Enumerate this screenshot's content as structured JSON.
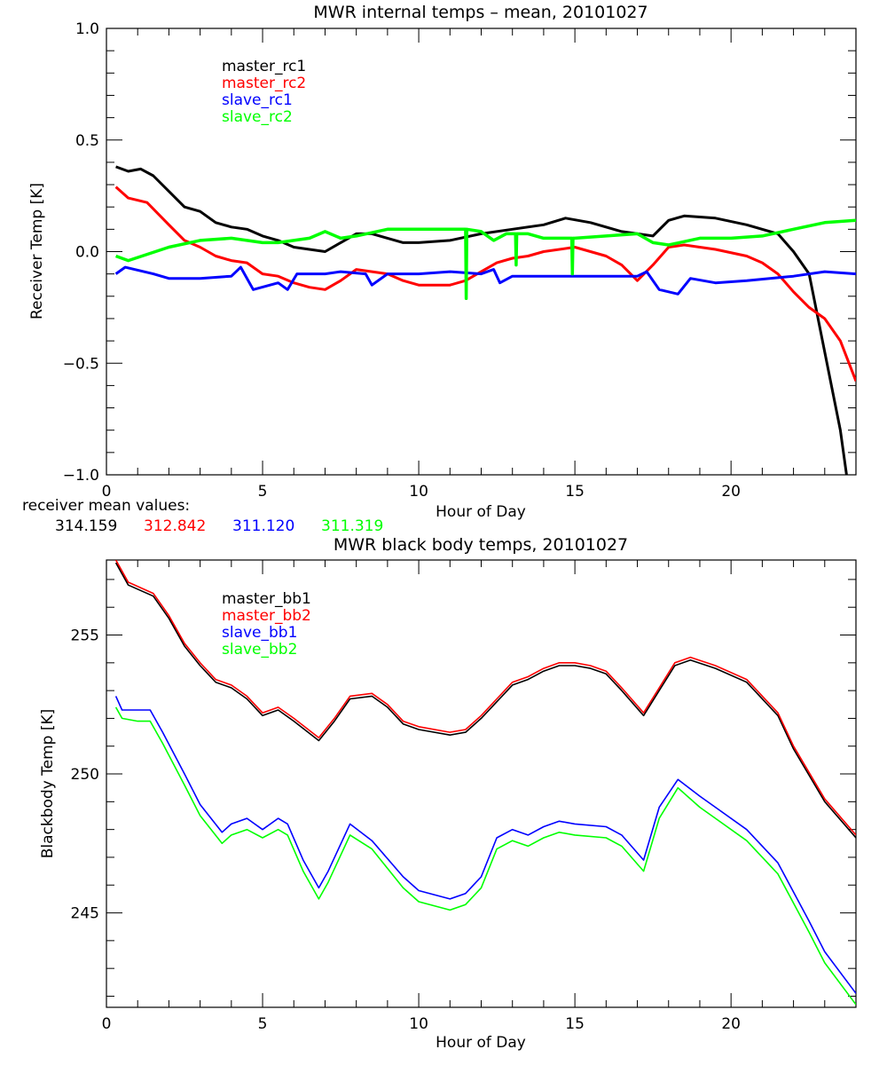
{
  "chart_data": [
    {
      "type": "line",
      "title": "MWR internal temps – mean, 20101027",
      "xlabel": "Hour of Day",
      "ylabel": "Receiver Temp [K]",
      "xlim": [
        0,
        24
      ],
      "ylim": [
        -1.0,
        1.0
      ],
      "xticks": [
        0,
        5,
        10,
        15,
        20
      ],
      "xtick_labels": [
        "0",
        "5",
        "10",
        "15",
        "20"
      ],
      "yticks": [
        -1.0,
        -0.5,
        0.0,
        0.5,
        1.0
      ],
      "ytick_labels": [
        "−1.0",
        "−0.5",
        "0.0",
        "0.5",
        "1.0"
      ],
      "grid": false,
      "legend": "top-left",
      "series": [
        {
          "name": "master_rc1",
          "color": "#000000",
          "x": [
            0.3,
            0.7,
            1.1,
            1.5,
            2,
            2.5,
            3,
            3.5,
            4,
            4.5,
            5,
            5.5,
            6,
            6.5,
            7,
            7.5,
            8,
            8.5,
            9,
            9.5,
            10,
            11,
            12,
            13,
            14,
            14.7,
            15.5,
            16.5,
            17.5,
            18,
            18.5,
            19.5,
            20.5,
            21.5,
            22,
            22.5,
            23,
            23.5,
            23.7
          ],
          "y": [
            0.38,
            0.36,
            0.37,
            0.34,
            0.27,
            0.2,
            0.18,
            0.13,
            0.11,
            0.1,
            0.07,
            0.05,
            0.02,
            0.01,
            0.0,
            0.04,
            0.08,
            0.08,
            0.06,
            0.04,
            0.04,
            0.05,
            0.08,
            0.1,
            0.12,
            0.15,
            0.13,
            0.09,
            0.07,
            0.14,
            0.16,
            0.15,
            0.12,
            0.08,
            0.0,
            -0.1,
            -0.45,
            -0.8,
            -1.0
          ]
        },
        {
          "name": "master_rc2",
          "color": "#ff0000",
          "x": [
            0.3,
            0.7,
            1.3,
            2,
            2.5,
            3,
            3.5,
            4,
            4.5,
            5,
            5.5,
            6,
            6.5,
            7,
            7.5,
            8,
            9,
            9.5,
            10,
            11,
            11.5,
            12,
            12.5,
            13,
            13.5,
            14,
            15,
            16,
            16.5,
            17,
            17.5,
            18,
            18.5,
            19.5,
            20.5,
            21,
            21.5,
            22,
            22.5,
            23,
            23.5,
            24
          ],
          "y": [
            0.29,
            0.24,
            0.22,
            0.12,
            0.05,
            0.02,
            -0.02,
            -0.04,
            -0.05,
            -0.1,
            -0.11,
            -0.14,
            -0.16,
            -0.17,
            -0.13,
            -0.08,
            -0.1,
            -0.13,
            -0.15,
            -0.15,
            -0.13,
            -0.09,
            -0.05,
            -0.03,
            -0.02,
            0.0,
            0.02,
            -0.02,
            -0.06,
            -0.13,
            -0.06,
            0.02,
            0.03,
            0.01,
            -0.02,
            -0.05,
            -0.1,
            -0.18,
            -0.25,
            -0.3,
            -0.4,
            -0.58
          ]
        },
        {
          "name": "slave_rc1",
          "color": "#0000ff",
          "x": [
            0.3,
            0.6,
            1.5,
            2,
            3,
            4,
            4.3,
            4.7,
            5.5,
            5.8,
            6.1,
            7,
            7.5,
            8.3,
            8.5,
            9,
            10,
            11,
            12,
            12.4,
            12.6,
            13,
            15,
            17,
            17.3,
            17.7,
            18.3,
            18.7,
            19.5,
            20.5,
            22,
            23,
            24
          ],
          "y": [
            -0.1,
            -0.07,
            -0.1,
            -0.12,
            -0.12,
            -0.11,
            -0.07,
            -0.17,
            -0.14,
            -0.17,
            -0.1,
            -0.1,
            -0.09,
            -0.1,
            -0.15,
            -0.1,
            -0.1,
            -0.09,
            -0.1,
            -0.08,
            -0.14,
            -0.11,
            -0.11,
            -0.11,
            -0.09,
            -0.17,
            -0.19,
            -0.12,
            -0.14,
            -0.13,
            -0.11,
            -0.09,
            -0.1
          ]
        },
        {
          "name": "slave_rc2",
          "color": "#00ff00",
          "x": [
            0.3,
            0.7,
            2,
            3,
            4,
            5,
            5.5,
            6.5,
            7,
            7.5,
            8,
            9,
            10,
            11,
            11.5,
            11.52,
            11.54,
            12,
            12.4,
            12.8,
            13.1,
            13.12,
            13.14,
            13.5,
            14,
            14.9,
            14.92,
            14.94,
            15,
            16,
            17,
            17.5,
            18,
            19,
            20,
            21,
            22,
            23,
            24
          ],
          "y": [
            -0.02,
            -0.04,
            0.02,
            0.05,
            0.06,
            0.04,
            0.04,
            0.06,
            0.09,
            0.06,
            0.07,
            0.1,
            0.1,
            0.1,
            0.1,
            -0.21,
            0.1,
            0.09,
            0.05,
            0.08,
            0.08,
            -0.06,
            0.08,
            0.08,
            0.06,
            0.06,
            -0.1,
            0.06,
            0.06,
            0.07,
            0.08,
            0.04,
            0.03,
            0.06,
            0.06,
            0.07,
            0.1,
            0.13,
            0.14
          ]
        }
      ],
      "annotation": {
        "label": "receiver mean values:",
        "values": [
          {
            "text": "314.159",
            "color": "#000000"
          },
          {
            "text": "312.842",
            "color": "#ff0000"
          },
          {
            "text": "311.120",
            "color": "#0000ff"
          },
          {
            "text": "311.319",
            "color": "#00ff00"
          }
        ]
      }
    },
    {
      "type": "line",
      "title": "MWR black body temps, 20101027",
      "xlabel": "Hour of Day",
      "ylabel": "Blackbody Temp [K]",
      "xlim": [
        0,
        24
      ],
      "ylim": [
        241.6,
        257.7
      ],
      "xticks": [
        0,
        5,
        10,
        15,
        20
      ],
      "xtick_labels": [
        "0",
        "5",
        "10",
        "15",
        "20"
      ],
      "yticks": [
        245,
        250,
        255
      ],
      "ytick_labels": [
        "245",
        "250",
        "255"
      ],
      "grid": false,
      "legend": "top-left",
      "series": [
        {
          "name": "master_bb1",
          "color": "#000000",
          "x": [
            0.3,
            0.7,
            1.5,
            2,
            2.5,
            3,
            3.5,
            4,
            4.5,
            5,
            5.5,
            6,
            6.8,
            7.3,
            7.8,
            8.5,
            9,
            9.5,
            10,
            11,
            11.5,
            12,
            12.5,
            13,
            13.5,
            14,
            14.5,
            15,
            15.5,
            16,
            16.5,
            17.2,
            17.7,
            18.2,
            18.7,
            19.5,
            20.5,
            21.5,
            22,
            23,
            24
          ],
          "y": [
            257.6,
            256.8,
            256.4,
            255.6,
            254.6,
            253.9,
            253.3,
            253.1,
            252.7,
            252.1,
            252.3,
            251.9,
            251.2,
            251.9,
            252.7,
            252.8,
            252.4,
            251.8,
            251.6,
            251.4,
            251.5,
            252.0,
            252.6,
            253.2,
            253.4,
            253.7,
            253.9,
            253.9,
            253.8,
            253.6,
            253.0,
            252.1,
            253.0,
            253.9,
            254.1,
            253.8,
            253.3,
            252.1,
            250.9,
            249.0,
            247.7
          ]
        },
        {
          "name": "master_bb2",
          "color": "#ff0000",
          "x": [
            0.3,
            0.7,
            1.5,
            2,
            2.5,
            3,
            3.5,
            4,
            4.5,
            5,
            5.5,
            6,
            6.8,
            7.3,
            7.8,
            8.5,
            9,
            9.5,
            10,
            11,
            11.5,
            12,
            12.5,
            13,
            13.5,
            14,
            14.5,
            15,
            15.5,
            16,
            16.5,
            17.2,
            17.7,
            18.2,
            18.7,
            19.5,
            20.5,
            21.5,
            22,
            23,
            24
          ],
          "y": [
            257.7,
            256.9,
            256.5,
            255.7,
            254.7,
            254.0,
            253.4,
            253.2,
            252.8,
            252.2,
            252.4,
            252.0,
            251.3,
            252.0,
            252.8,
            252.9,
            252.5,
            251.9,
            251.7,
            251.5,
            251.6,
            252.1,
            252.7,
            253.3,
            253.5,
            253.8,
            254.0,
            254.0,
            253.9,
            253.7,
            253.1,
            252.2,
            253.1,
            254.0,
            254.2,
            253.9,
            253.4,
            252.2,
            251.0,
            249.1,
            247.8
          ]
        },
        {
          "name": "slave_bb1",
          "color": "#0000ff",
          "x": [
            0.3,
            0.5,
            1,
            1.4,
            1.8,
            2.5,
            3,
            3.7,
            4,
            4.5,
            5,
            5.5,
            5.8,
            6.3,
            6.8,
            7.1,
            7.8,
            8.5,
            9.5,
            10,
            11,
            11.5,
            12,
            12.5,
            13,
            13.5,
            14,
            14.5,
            15,
            16,
            16.5,
            17.2,
            17.7,
            18.3,
            19,
            19.5,
            20.5,
            21.5,
            22.5,
            23,
            24
          ],
          "y": [
            252.8,
            252.3,
            252.3,
            252.3,
            251.5,
            250.0,
            248.9,
            247.9,
            248.2,
            248.4,
            248.0,
            248.4,
            248.2,
            246.9,
            245.9,
            246.5,
            248.2,
            247.6,
            246.3,
            245.8,
            245.5,
            245.7,
            246.3,
            247.7,
            248.0,
            247.8,
            248.1,
            248.3,
            248.2,
            248.1,
            247.8,
            246.9,
            248.8,
            249.8,
            249.2,
            248.8,
            248.0,
            246.8,
            244.7,
            243.6,
            242.1
          ]
        },
        {
          "name": "slave_bb2",
          "color": "#00ff00",
          "x": [
            0.3,
            0.5,
            1,
            1.4,
            1.8,
            2.5,
            3,
            3.7,
            4,
            4.5,
            5,
            5.5,
            5.8,
            6.3,
            6.8,
            7.1,
            7.8,
            8.5,
            9.5,
            10,
            11,
            11.5,
            12,
            12.5,
            13,
            13.5,
            14,
            14.5,
            15,
            16,
            16.5,
            17.2,
            17.7,
            18.3,
            19,
            19.5,
            20.5,
            21.5,
            22.5,
            23,
            24
          ],
          "y": [
            252.4,
            252.0,
            251.9,
            251.9,
            251.1,
            249.6,
            248.5,
            247.5,
            247.8,
            248.0,
            247.7,
            248.0,
            247.8,
            246.5,
            245.5,
            246.1,
            247.8,
            247.3,
            245.9,
            245.4,
            245.1,
            245.3,
            245.9,
            247.3,
            247.6,
            247.4,
            247.7,
            247.9,
            247.8,
            247.7,
            247.4,
            246.5,
            248.4,
            249.5,
            248.8,
            248.4,
            247.6,
            246.4,
            244.3,
            243.2,
            241.7
          ]
        }
      ]
    }
  ]
}
